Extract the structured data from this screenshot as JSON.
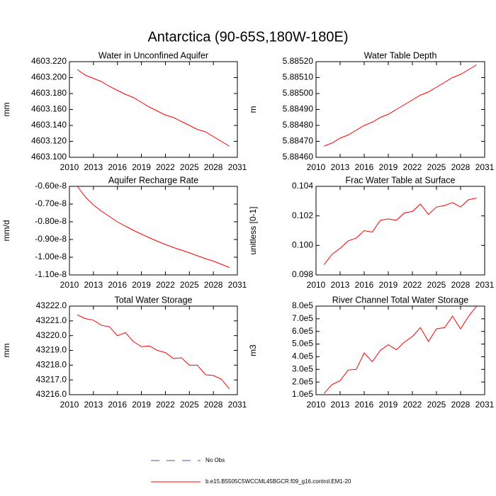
{
  "title": "Antarctica (90-65S,180W-180E)",
  "legend": [
    {
      "name": "No Obs",
      "color": "#5050a0",
      "dashed": true
    },
    {
      "name": "b.e15.B5505C5WCCML45BGCR.f09_g16.control.EM1-20",
      "color": "#ff0000",
      "dashed": false
    }
  ],
  "chart_data": [
    {
      "type": "line",
      "title": "Water in Unconfined Aquifer",
      "ylabel": "mm",
      "color": "#ff0000",
      "x": [
        2011,
        2012,
        2013,
        2014,
        2015,
        2016,
        2017,
        2018,
        2019,
        2020,
        2021,
        2022,
        2023,
        2024,
        2025,
        2026,
        2027,
        2028,
        2029,
        2030
      ],
      "values": [
        4603.21,
        4603.203,
        4603.199,
        4603.195,
        4603.189,
        4603.184,
        4603.179,
        4603.175,
        4603.169,
        4603.163,
        4603.158,
        4603.153,
        4603.15,
        4603.145,
        4603.14,
        4603.135,
        4603.132,
        4603.126,
        4603.12,
        4603.114
      ],
      "xlim": [
        2010,
        2031
      ],
      "xticks": [
        2010,
        2013,
        2016,
        2019,
        2022,
        2025,
        2028,
        2031
      ],
      "ylim": [
        4603.1,
        4603.22
      ],
      "yticks": [
        {
          "value": 4603.1,
          "label": "4603.100"
        },
        {
          "value": 4603.12,
          "label": "4603.120"
        },
        {
          "value": 4603.14,
          "label": "4603.140"
        },
        {
          "value": 4603.16,
          "label": "4603.160"
        },
        {
          "value": 4603.18,
          "label": "4603.180"
        },
        {
          "value": 4603.2,
          "label": "4603.200"
        },
        {
          "value": 4603.22,
          "label": "4603.220"
        }
      ]
    },
    {
      "type": "line",
      "title": "Water Table Depth",
      "ylabel": "m",
      "color": "#ff0000",
      "x": [
        2011,
        2012,
        2013,
        2014,
        2015,
        2016,
        2017,
        2018,
        2019,
        2020,
        2021,
        2022,
        2023,
        2024,
        2025,
        2026,
        2027,
        2028,
        2029,
        2030
      ],
      "values": [
        5.88467,
        5.88469,
        5.88472,
        5.88474,
        5.88477,
        5.8848,
        5.88482,
        5.88485,
        5.88487,
        5.8849,
        5.88493,
        5.88496,
        5.88499,
        5.88501,
        5.88504,
        5.88507,
        5.8851,
        5.88512,
        5.88515,
        5.88518
      ],
      "xlim": [
        2010,
        2031
      ],
      "xticks": [
        2010,
        2013,
        2016,
        2019,
        2022,
        2025,
        2028,
        2031
      ],
      "ylim": [
        5.8846,
        5.8852
      ],
      "yticks": [
        {
          "value": 5.8846,
          "label": "5.88460"
        },
        {
          "value": 5.8847,
          "label": "5.88470"
        },
        {
          "value": 5.8848,
          "label": "5.88480"
        },
        {
          "value": 5.8849,
          "label": "5.88490"
        },
        {
          "value": 5.885,
          "label": "5.88500"
        },
        {
          "value": 5.8851,
          "label": "5.88510"
        },
        {
          "value": 5.8852,
          "label": "5.88520"
        }
      ]
    },
    {
      "type": "line",
      "title": "Aquifer Recharge Rate",
      "ylabel": "mm/d",
      "color": "#ff0000",
      "x": [
        2011,
        2012,
        2013,
        2014,
        2015,
        2016,
        2017,
        2018,
        2019,
        2020,
        2021,
        2022,
        2023,
        2024,
        2025,
        2026,
        2027,
        2028,
        2029,
        2030
      ],
      "values": [
        -6e-09,
        -6.6e-09,
        -7.05e-09,
        -7.4e-09,
        -7.7e-09,
        -8e-09,
        -8.25e-09,
        -8.48e-09,
        -8.7e-09,
        -8.9e-09,
        -9.1e-09,
        -9.28e-09,
        -9.45e-09,
        -9.6e-09,
        -9.75e-09,
        -9.92e-09,
        -1.008e-08,
        -1.022e-08,
        -1.04e-08,
        -1.058e-08
      ],
      "xlim": [
        2010,
        2031
      ],
      "xticks": [
        2010,
        2013,
        2016,
        2019,
        2022,
        2025,
        2028,
        2031
      ],
      "ylim": [
        -1.1e-08,
        -6e-09
      ],
      "yticks": [
        {
          "value": -1.1e-08,
          "label": "-1.10e-8"
        },
        {
          "value": -1e-08,
          "label": "-1.00e-8"
        },
        {
          "value": -9e-09,
          "label": "-0.90e-8"
        },
        {
          "value": -8e-09,
          "label": "-0.80e-8"
        },
        {
          "value": -7e-09,
          "label": "-0.70e-8"
        },
        {
          "value": -6e-09,
          "label": "-0.60e-8"
        }
      ]
    },
    {
      "type": "line",
      "title": "Frac Water Table at Surface",
      "ylabel": "unitless [0-1]",
      "color": "#ff0000",
      "x": [
        2011,
        2012,
        2013,
        2014,
        2015,
        2016,
        2017,
        2018,
        2019,
        2020,
        2021,
        2022,
        2023,
        2024,
        2025,
        2026,
        2027,
        2028,
        2029,
        2030
      ],
      "values": [
        0.0987,
        0.0994,
        0.0998,
        0.1003,
        0.1005,
        0.101,
        0.1009,
        0.1017,
        0.1018,
        0.1017,
        0.1022,
        0.1023,
        0.1028,
        0.1021,
        0.1026,
        0.1027,
        0.1029,
        0.1026,
        0.1031,
        0.1032
      ],
      "xlim": [
        2010,
        2031
      ],
      "xticks": [
        2010,
        2013,
        2016,
        2019,
        2022,
        2025,
        2028,
        2031
      ],
      "ylim": [
        0.098,
        0.104
      ],
      "yticks": [
        0.098,
        {
          "value": 0.1,
          "label": "0.100"
        },
        0.102,
        0.104
      ]
    },
    {
      "type": "line",
      "title": "Total Water Storage",
      "ylabel": "mm",
      "color": "#ff0000",
      "x": [
        2011,
        2012,
        2013,
        2014,
        2015,
        2016,
        2017,
        2018,
        2019,
        2020,
        2021,
        2022,
        2023,
        2024,
        2025,
        2026,
        2027,
        2028,
        2029,
        2030
      ],
      "values": [
        43221.4,
        43221.15,
        43221.05,
        43220.7,
        43220.6,
        43220.0,
        43220.2,
        43219.6,
        43219.25,
        43219.3,
        43219.0,
        43218.85,
        43218.45,
        43218.5,
        43218.0,
        43218.0,
        43217.35,
        43217.3,
        43217.05,
        43216.4
      ],
      "xlim": [
        2010,
        2031
      ],
      "xticks": [
        2010,
        2013,
        2016,
        2019,
        2022,
        2025,
        2028,
        2031
      ],
      "ylim": [
        43216,
        43222
      ],
      "yticks": [
        {
          "value": 43216,
          "label": "43216.0"
        },
        {
          "value": 43217,
          "label": "43217.0"
        },
        {
          "value": 43218,
          "label": "43218.0"
        },
        {
          "value": 43219,
          "label": "43219.0"
        },
        {
          "value": 43220,
          "label": "43220.0"
        },
        {
          "value": 43221,
          "label": "43221.0"
        },
        {
          "value": 43222,
          "label": "43222.0"
        }
      ]
    },
    {
      "type": "line",
      "title": "River Channel Total Water Storage",
      "ylabel": "m3",
      "color": "#ff0000",
      "x": [
        2011,
        2012,
        2013,
        2014,
        2015,
        2016,
        2017,
        2018,
        2019,
        2020,
        2021,
        2022,
        2023,
        2024,
        2025,
        2026,
        2027,
        2028,
        2029,
        2030
      ],
      "values": [
        110000,
        180000,
        210000,
        295000,
        300000,
        430000,
        360000,
        450000,
        495000,
        455000,
        515000,
        560000,
        630000,
        520000,
        620000,
        630000,
        720000,
        620000,
        720000,
        800000
      ],
      "xlim": [
        2010,
        2031
      ],
      "xticks": [
        2010,
        2013,
        2016,
        2019,
        2022,
        2025,
        2028,
        2031
      ],
      "ylim": [
        100000,
        800000
      ],
      "yticks": [
        {
          "value": 100000,
          "label": "1.0e5"
        },
        {
          "value": 200000,
          "label": "2.0e5"
        },
        {
          "value": 300000,
          "label": "3.0e5"
        },
        {
          "value": 400000,
          "label": "4.0e5"
        },
        {
          "value": 500000,
          "label": "5.0e5"
        },
        {
          "value": 600000,
          "label": "6.0e5"
        },
        {
          "value": 700000,
          "label": "7.0e5"
        },
        {
          "value": 800000,
          "label": "8.0e5"
        }
      ]
    }
  ]
}
